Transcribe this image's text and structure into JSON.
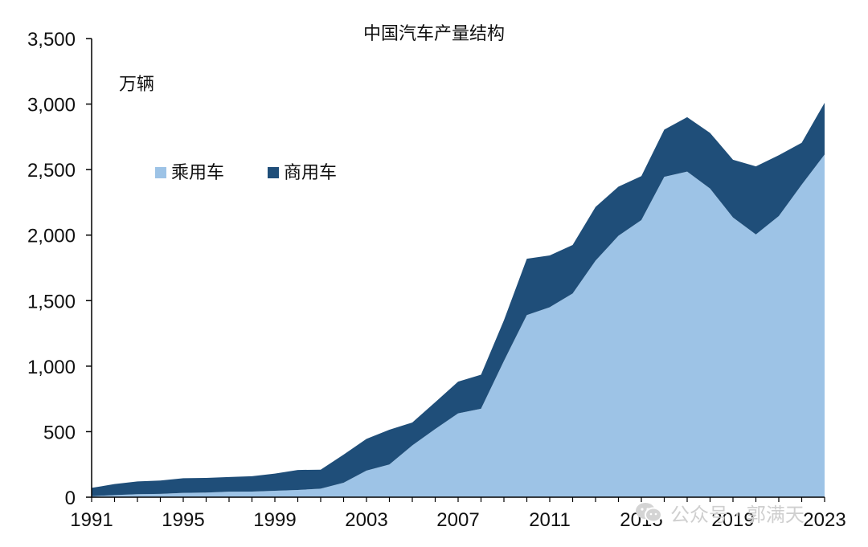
{
  "chart_data": {
    "type": "area",
    "stacked": true,
    "title": "中国汽车产量结构",
    "unit_label": "万辆",
    "xlabel": "",
    "ylabel": "",
    "ylim": [
      0,
      3500
    ],
    "yticks": [
      0,
      500,
      1000,
      1500,
      2000,
      2500,
      3000,
      3500
    ],
    "ytick_labels": [
      "0",
      "500",
      "1,000",
      "1,500",
      "2,000",
      "2,500",
      "3,000",
      "3,500"
    ],
    "xlim": [
      1991,
      2023
    ],
    "xticks": [
      1991,
      1995,
      1999,
      2003,
      2007,
      2011,
      2015,
      2019,
      2023
    ],
    "xtick_labels": [
      "1991",
      "1995",
      "1999",
      "2003",
      "2007",
      "2011",
      "2015",
      "2019",
      "2023"
    ],
    "grid": false,
    "legend_position": "upper-left",
    "x": [
      1991,
      1992,
      1993,
      1994,
      1995,
      1996,
      1997,
      1998,
      1999,
      2000,
      2001,
      2002,
      2003,
      2004,
      2005,
      2006,
      2007,
      2008,
      2009,
      2010,
      2011,
      2012,
      2013,
      2014,
      2015,
      2016,
      2017,
      2018,
      2019,
      2020,
      2021,
      2022,
      2023
    ],
    "series": [
      {
        "name": "乘用车",
        "color": "#9dc3e6",
        "values": [
          8,
          16,
          23,
          25,
          33,
          35,
          42,
          43,
          49,
          55,
          65,
          110,
          203,
          250,
          395,
          520,
          640,
          675,
          1040,
          1390,
          1450,
          1555,
          1805,
          1995,
          2115,
          2445,
          2485,
          2355,
          2135,
          2005,
          2145,
          2385,
          2615
        ]
      },
      {
        "name": "商用车",
        "color": "#1f4e79",
        "values": [
          63,
          84,
          97,
          102,
          112,
          112,
          112,
          117,
          131,
          153,
          145,
          215,
          242,
          265,
          175,
          205,
          242,
          260,
          310,
          430,
          395,
          370,
          410,
          375,
          335,
          360,
          415,
          425,
          440,
          520,
          465,
          320,
          395
        ]
      }
    ]
  },
  "watermark": {
    "text": "公众号 · 郭满天"
  }
}
